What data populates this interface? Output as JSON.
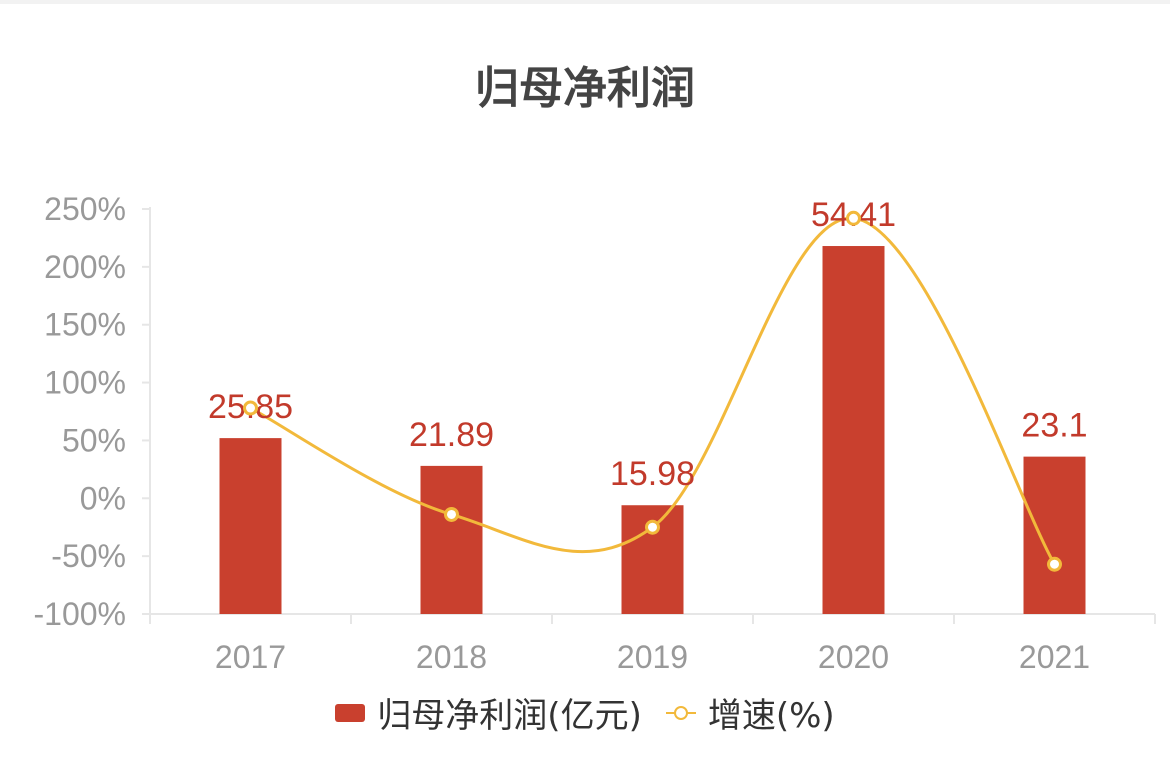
{
  "chart_data": {
    "type": "bar",
    "title": "归母净利润",
    "categories": [
      "2017",
      "2018",
      "2019",
      "2020",
      "2021"
    ],
    "series": [
      {
        "name": "归母净利润(亿元)",
        "type": "bar",
        "values": [
          25.85,
          21.89,
          15.98,
          54.41,
          23.1
        ],
        "data_labels": [
          "25.85",
          "21.89",
          "15.98",
          "54.41",
          "23.1"
        ],
        "bar_height_on_percent_axis": [
          52,
          28,
          -6,
          218,
          36
        ],
        "color": "#c9402e"
      },
      {
        "name": "增速(%)",
        "type": "line",
        "smooth": true,
        "values": [
          78,
          -14,
          -25,
          242,
          -57
        ],
        "color": "#f2b93b"
      }
    ],
    "yaxis": {
      "ticks": [
        "250%",
        "200%",
        "150%",
        "100%",
        "50%",
        "0%",
        "-50%",
        "-100%"
      ],
      "ylim": [
        -100,
        250
      ]
    },
    "grid": false,
    "legend_position": "bottom"
  }
}
